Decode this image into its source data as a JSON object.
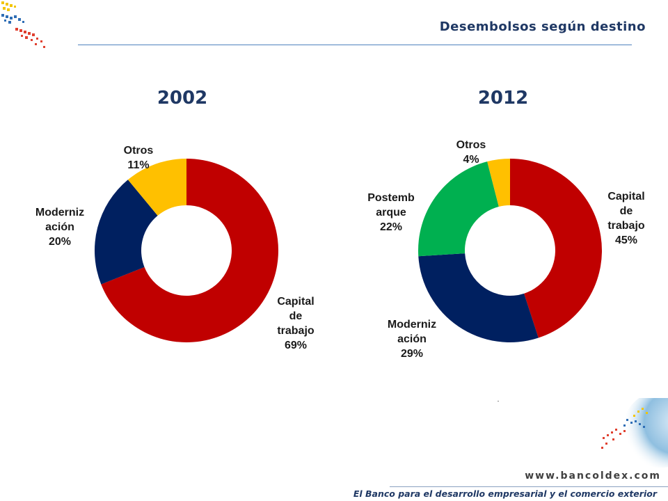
{
  "header": {
    "title": "Desembolsos según destino"
  },
  "footer": {
    "url": "www.bancoldex.com",
    "slogan": "El Banco para el desarrollo empresarial y el comercio exterior"
  },
  "colors": {
    "capital": "#c00000",
    "modernizacion": "#002060",
    "otros": "#ffc000",
    "postembarque": "#00b050",
    "title": "#1f3864"
  },
  "chart_data": [
    {
      "type": "pie",
      "title": "2002",
      "slices": [
        {
          "label_lines": [
            "Capital",
            "de",
            "trabajo"
          ],
          "value": 69,
          "value_label": "69%",
          "color": "#c00000"
        },
        {
          "label_lines": [
            "Moderniz",
            "ación"
          ],
          "value": 20,
          "value_label": "20%",
          "color": "#002060"
        },
        {
          "label_lines": [
            "Otros"
          ],
          "value": 11,
          "value_label": "11%",
          "color": "#ffc000"
        }
      ]
    },
    {
      "type": "pie",
      "title": "2012",
      "slices": [
        {
          "label_lines": [
            "Capital",
            "de",
            "trabajo"
          ],
          "value": 45,
          "value_label": "45%",
          "color": "#c00000"
        },
        {
          "label_lines": [
            "Moderniz",
            "ación"
          ],
          "value": 29,
          "value_label": "29%",
          "color": "#002060"
        },
        {
          "label_lines": [
            "Postemb",
            "arque"
          ],
          "value": 22,
          "value_label": "22%",
          "color": "#00b050"
        },
        {
          "label_lines": [
            "Otros"
          ],
          "value": 4,
          "value_label": "4%",
          "color": "#ffc000"
        }
      ]
    }
  ]
}
